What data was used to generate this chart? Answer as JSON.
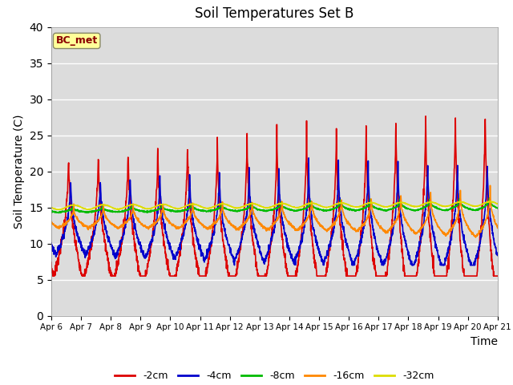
{
  "title": "Soil Temperatures Set B",
  "xlabel": "Time",
  "ylabel": "Soil Temperature (C)",
  "ylim": [
    0,
    40
  ],
  "yticks": [
    0,
    5,
    10,
    15,
    20,
    25,
    30,
    35,
    40
  ],
  "bg_color": "#dcdcdc",
  "fig_color": "#ffffff",
  "annotation_label": "BC_met",
  "annotation_bg": "#ffff99",
  "annotation_border": "#8B0000",
  "colors": {
    "-2cm": "#dd0000",
    "-4cm": "#0000cc",
    "-8cm": "#00bb00",
    "-16cm": "#ff8800",
    "-32cm": "#dddd00"
  },
  "n_days": 15,
  "start_day": 6,
  "points_per_day": 144
}
